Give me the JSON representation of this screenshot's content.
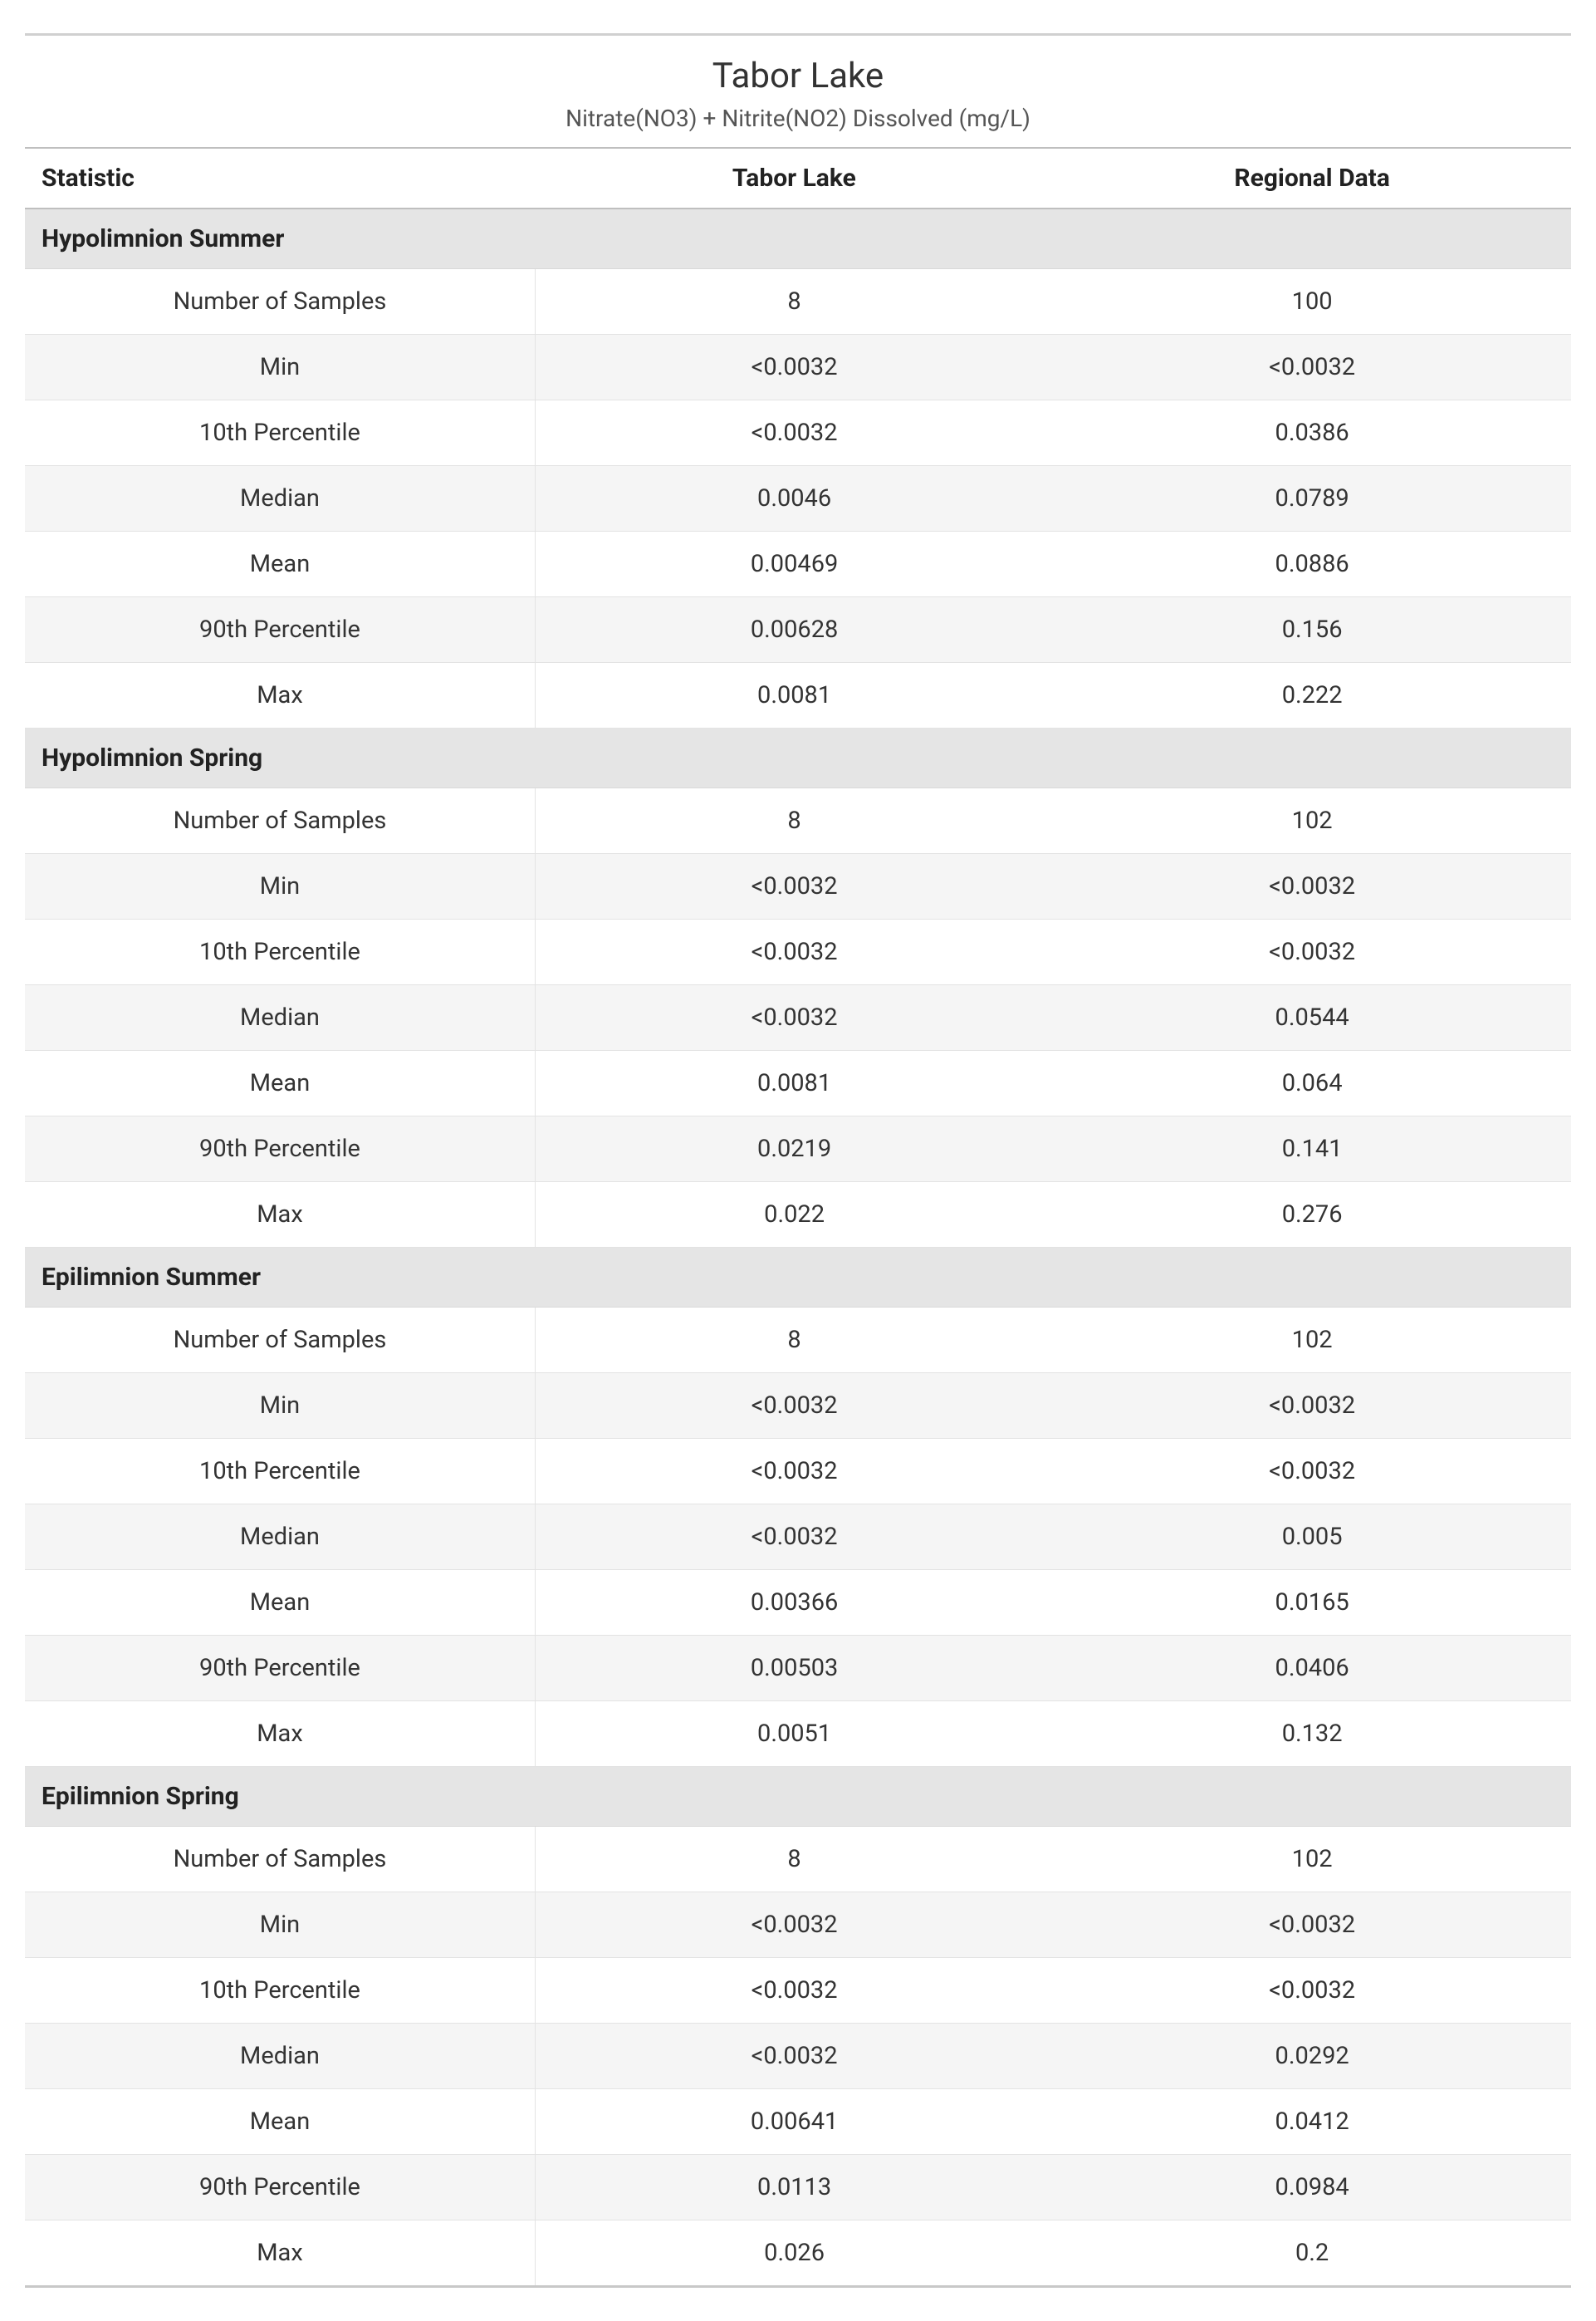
{
  "title": "Tabor Lake",
  "subtitle": "Nitrate(NO3) + Nitrite(NO2) Dissolved (mg/L)",
  "table": {
    "type": "table",
    "columns": [
      "Statistic",
      "Tabor Lake",
      "Regional Data"
    ],
    "column_align": [
      "left",
      "center",
      "center"
    ],
    "header_fontweight": 700,
    "header_fontsize": 30,
    "section_bg": "#e5e5e5",
    "row_alt_bg": "#f5f5f5",
    "border_color": "#e3e3e3",
    "header_border_color": "#bfbfbf",
    "stat_labels": [
      "Number of Samples",
      "Min",
      "10th Percentile",
      "Median",
      "Mean",
      "90th Percentile",
      "Max"
    ],
    "sections": [
      {
        "name": "Hypolimnion Summer",
        "rows": [
          [
            "8",
            "100"
          ],
          [
            "<0.0032",
            "<0.0032"
          ],
          [
            "<0.0032",
            "0.0386"
          ],
          [
            "0.0046",
            "0.0789"
          ],
          [
            "0.00469",
            "0.0886"
          ],
          [
            "0.00628",
            "0.156"
          ],
          [
            "0.0081",
            "0.222"
          ]
        ]
      },
      {
        "name": "Hypolimnion Spring",
        "rows": [
          [
            "8",
            "102"
          ],
          [
            "<0.0032",
            "<0.0032"
          ],
          [
            "<0.0032",
            "<0.0032"
          ],
          [
            "<0.0032",
            "0.0544"
          ],
          [
            "0.0081",
            "0.064"
          ],
          [
            "0.0219",
            "0.141"
          ],
          [
            "0.022",
            "0.276"
          ]
        ]
      },
      {
        "name": "Epilimnion Summer",
        "rows": [
          [
            "8",
            "102"
          ],
          [
            "<0.0032",
            "<0.0032"
          ],
          [
            "<0.0032",
            "<0.0032"
          ],
          [
            "<0.0032",
            "0.005"
          ],
          [
            "0.00366",
            "0.0165"
          ],
          [
            "0.00503",
            "0.0406"
          ],
          [
            "0.0051",
            "0.132"
          ]
        ]
      },
      {
        "name": "Epilimnion Spring",
        "rows": [
          [
            "8",
            "102"
          ],
          [
            "<0.0032",
            "<0.0032"
          ],
          [
            "<0.0032",
            "<0.0032"
          ],
          [
            "<0.0032",
            "0.0292"
          ],
          [
            "0.00641",
            "0.0412"
          ],
          [
            "0.0113",
            "0.0984"
          ],
          [
            "0.026",
            "0.2"
          ]
        ]
      }
    ]
  },
  "colors": {
    "background": "#ffffff",
    "text": "#333333",
    "section_bg": "#e5e5e5",
    "alt_row_bg": "#f5f5f5",
    "border": "#e3e3e3",
    "top_rule": "#d0d0d0"
  },
  "typography": {
    "title_fontsize": 42,
    "subtitle_fontsize": 28,
    "cell_fontsize": 29,
    "font_family": "Segoe UI"
  }
}
